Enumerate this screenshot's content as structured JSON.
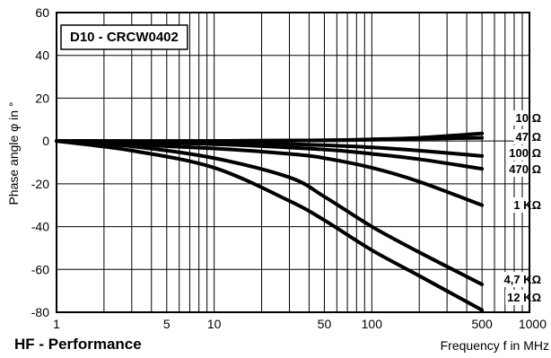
{
  "footer_title": "HF - Performance",
  "chart_data": {
    "type": "line",
    "title": "D10 - CRCW0402",
    "xlabel": "Frequency  f  in  MHz",
    "ylabel": "Phase angle  φ  in °",
    "xscale": "log",
    "xlim": [
      1,
      1000
    ],
    "ylim": [
      -80,
      60
    ],
    "x_ticks": [
      1,
      5,
      10,
      50,
      100,
      500,
      1000
    ],
    "x_tick_labels": [
      "1",
      "5",
      "10",
      "50",
      "100",
      "500",
      "1000"
    ],
    "y_ticks": [
      60,
      40,
      20,
      0,
      -20,
      -40,
      -60,
      -80
    ],
    "y_tick_labels": [
      "60",
      "40",
      "20",
      "0",
      "-20",
      "-40",
      "-60",
      "-80"
    ],
    "grid": true,
    "line_color": "#000000",
    "series": [
      {
        "name": "10 Ω",
        "x": [
          1,
          10,
          50,
          100,
          200,
          500
        ],
        "y": [
          0,
          0,
          0.3,
          0.8,
          1.5,
          3.5
        ]
      },
      {
        "name": "47 Ω",
        "x": [
          1,
          10,
          50,
          100,
          200,
          500
        ],
        "y": [
          0,
          0,
          0.3,
          0.6,
          1.0,
          1.5
        ]
      },
      {
        "name": "100 Ω",
        "x": [
          1,
          10,
          50,
          100,
          200,
          500
        ],
        "y": [
          0,
          -0.5,
          -2,
          -3,
          -4.5,
          -7
        ]
      },
      {
        "name": "470 Ω",
        "x": [
          1,
          10,
          50,
          100,
          200,
          500
        ],
        "y": [
          0,
          -1.5,
          -4,
          -6,
          -8.5,
          -13
        ]
      },
      {
        "name": "1 KΩ",
        "x": [
          1,
          10,
          30,
          50,
          100,
          200,
          500
        ],
        "y": [
          0,
          -3.5,
          -6,
          -8,
          -12.5,
          -19,
          -30
        ]
      },
      {
        "name": "4,7 KΩ",
        "x": [
          1,
          3,
          10,
          30,
          50,
          100,
          200,
          500
        ],
        "y": [
          0,
          -2.5,
          -8,
          -17,
          -26,
          -40,
          -52,
          -67
        ]
      },
      {
        "name": "12 KΩ",
        "x": [
          1,
          3,
          10,
          30,
          50,
          100,
          200,
          500
        ],
        "y": [
          0,
          -4.5,
          -12.5,
          -28,
          -37,
          -51,
          -63,
          -79
        ]
      }
    ]
  }
}
